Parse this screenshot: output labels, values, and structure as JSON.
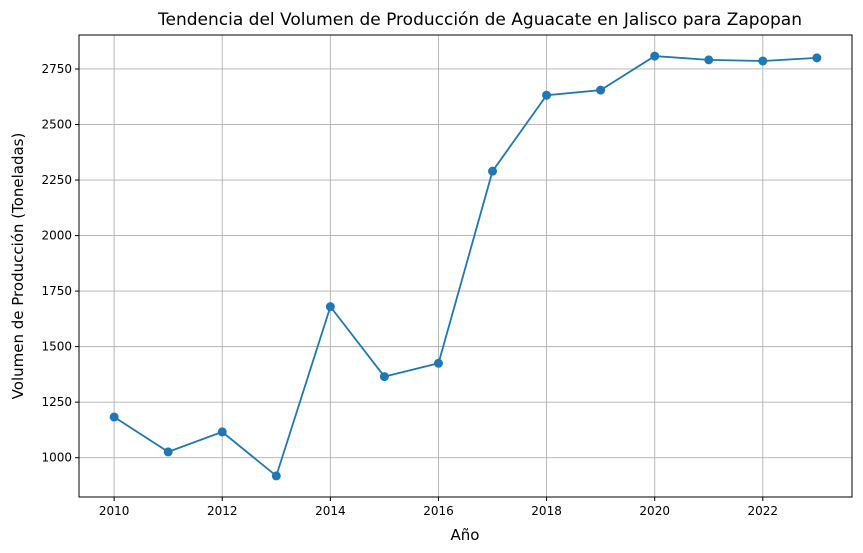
{
  "chart_data": {
    "type": "line",
    "title": "Tendencia del Volumen de Producción de Aguacate en Jalisco para Zapopan",
    "xlabel": "Año",
    "ylabel": "Volumen de Producción (Toneladas)",
    "x": [
      2010,
      2011,
      2012,
      2013,
      2014,
      2015,
      2016,
      2017,
      2018,
      2019,
      2020,
      2021,
      2022,
      2023
    ],
    "series": [
      {
        "values": [
          1183,
          1026,
          1116,
          918,
          1680,
          1365,
          1425,
          2290,
          2632,
          2655,
          2808,
          2791,
          2786,
          2800
        ],
        "color": "#1f77b4",
        "marker": "circle"
      }
    ],
    "x_ticks": [
      "2010",
      "2012",
      "2014",
      "2016",
      "2018",
      "2020",
      "2022"
    ],
    "y_ticks": [
      "1000",
      "1250",
      "1500",
      "1750",
      "2000",
      "2250",
      "2500",
      "2750"
    ],
    "xlim": [
      2009.35,
      2023.65
    ],
    "ylim": [
      823,
      2903
    ],
    "grid": true
  }
}
